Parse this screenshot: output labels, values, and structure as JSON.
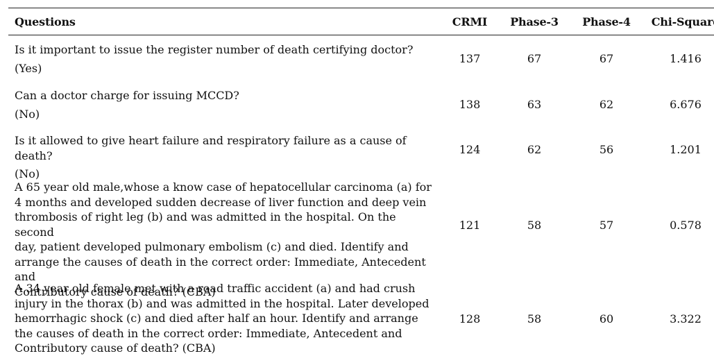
{
  "table": {
    "headers": [
      "Questions",
      "CRMI",
      "Phase-3",
      "Phase-4",
      "Chi-Square"
    ],
    "rows": [
      {
        "question": "Is it important to issue the register number of death certifying doctor?",
        "answer": "(Yes)",
        "crmi": "137",
        "phase3": "67",
        "phase4": "67",
        "chi": "1.416"
      },
      {
        "question": "Can a doctor charge for issuing MCCD?",
        "answer": "(No)",
        "crmi": "138",
        "phase3": "63",
        "phase4": "62",
        "chi": "6.676"
      },
      {
        "question": "Is it allowed to give heart failure and respiratory failure as a cause of death?",
        "answer": "(No)",
        "crmi": "124",
        "phase3": "62",
        "phase4": "56",
        "chi": "1.201"
      },
      {
        "question_lines": [
          "A 65 year old male,whose a know case of hepatocellular carcinoma (a) for",
          "4 months and developed sudden decrease of liver function and deep vein",
          "thrombosis of right leg (b) and was admitted in the hospital. On the second",
          "day, patient developed pulmonary embolism (c) and died. Identify and",
          "arrange the causes of death in the correct order: Immediate, Antecedent and",
          "Contributory cause of death? (CBA)"
        ],
        "crmi": "121",
        "phase3": "58",
        "phase4": "57",
        "chi": "0.578"
      },
      {
        "question_lines": [
          "A 34 year old female met with a road traffic accident (a) and had crush",
          "injury in the thorax (b) and was admitted in the hospital. Later developed",
          "hemorrhagic shock (c) and died after half an hour. Identify and arrange",
          "the causes of death in the correct order: Immediate, Antecedent and",
          "Contributory cause of death? (CBA)"
        ],
        "crmi": "128",
        "phase3": "58",
        "phase4": "60",
        "chi": "3.322"
      }
    ]
  }
}
